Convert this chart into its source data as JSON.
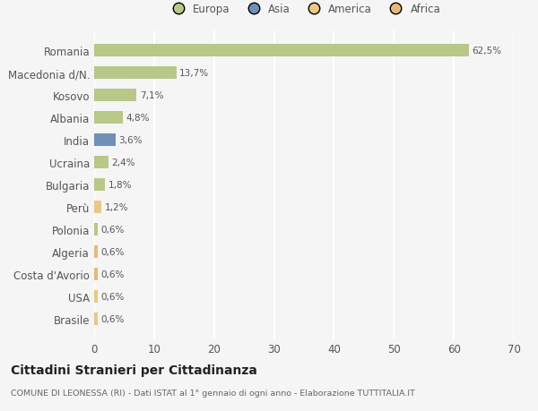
{
  "categories": [
    "Brasile",
    "USA",
    "Costa d'Avorio",
    "Algeria",
    "Polonia",
    "Perù",
    "Bulgaria",
    "Ucraina",
    "India",
    "Albania",
    "Kosovo",
    "Macedonia d/N.",
    "Romania"
  ],
  "values": [
    0.6,
    0.6,
    0.6,
    0.6,
    0.6,
    1.2,
    1.8,
    2.4,
    3.6,
    4.8,
    7.1,
    13.7,
    62.5
  ],
  "labels": [
    "0,6%",
    "0,6%",
    "0,6%",
    "0,6%",
    "0,6%",
    "1,2%",
    "1,8%",
    "2,4%",
    "3,6%",
    "4,8%",
    "7,1%",
    "13,7%",
    "62,5%"
  ],
  "colors": [
    "#e8c882",
    "#e8c882",
    "#e8b87a",
    "#e8b87a",
    "#b8c888",
    "#e8c882",
    "#b8c888",
    "#b8c888",
    "#7090b8",
    "#b8c888",
    "#b8c888",
    "#b8c888",
    "#b8c888"
  ],
  "legend_labels": [
    "Europa",
    "Asia",
    "America",
    "Africa"
  ],
  "legend_colors": [
    "#b8c888",
    "#7090b8",
    "#e8c882",
    "#e8b87a"
  ],
  "title": "Cittadini Stranieri per Cittadinanza",
  "subtitle": "COMUNE DI LEONESSA (RI) - Dati ISTAT al 1° gennaio di ogni anno - Elaborazione TUTTITALIA.IT",
  "xlim": [
    0,
    70
  ],
  "xticks": [
    0,
    10,
    20,
    30,
    40,
    50,
    60,
    70
  ],
  "bg_color": "#f5f5f5",
  "grid_color": "#ffffff",
  "bar_height": 0.55
}
